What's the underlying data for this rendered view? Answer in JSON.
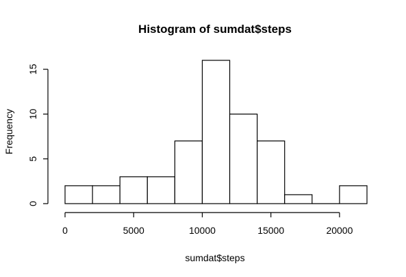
{
  "chart_data": {
    "type": "bar",
    "title": "Histogram of sumdat$steps",
    "xlabel": "sumdat$steps",
    "ylabel": "Frequency",
    "bins": [
      {
        "start": 0,
        "end": 2000,
        "count": 2
      },
      {
        "start": 2000,
        "end": 4000,
        "count": 2
      },
      {
        "start": 4000,
        "end": 6000,
        "count": 3
      },
      {
        "start": 6000,
        "end": 8000,
        "count": 3
      },
      {
        "start": 8000,
        "end": 10000,
        "count": 7
      },
      {
        "start": 10000,
        "end": 12000,
        "count": 16
      },
      {
        "start": 12000,
        "end": 14000,
        "count": 10
      },
      {
        "start": 14000,
        "end": 16000,
        "count": 7
      },
      {
        "start": 16000,
        "end": 18000,
        "count": 1
      },
      {
        "start": 18000,
        "end": 20000,
        "count": 0
      },
      {
        "start": 20000,
        "end": 22000,
        "count": 2
      }
    ],
    "x_ticks": [
      0,
      5000,
      10000,
      15000,
      20000
    ],
    "y_ticks": [
      0,
      5,
      10,
      15
    ],
    "xlim": [
      0,
      22000
    ],
    "ylim": [
      0,
      16
    ],
    "grid": false,
    "bar_color": "#ffffff",
    "edge_color": "#000000"
  }
}
